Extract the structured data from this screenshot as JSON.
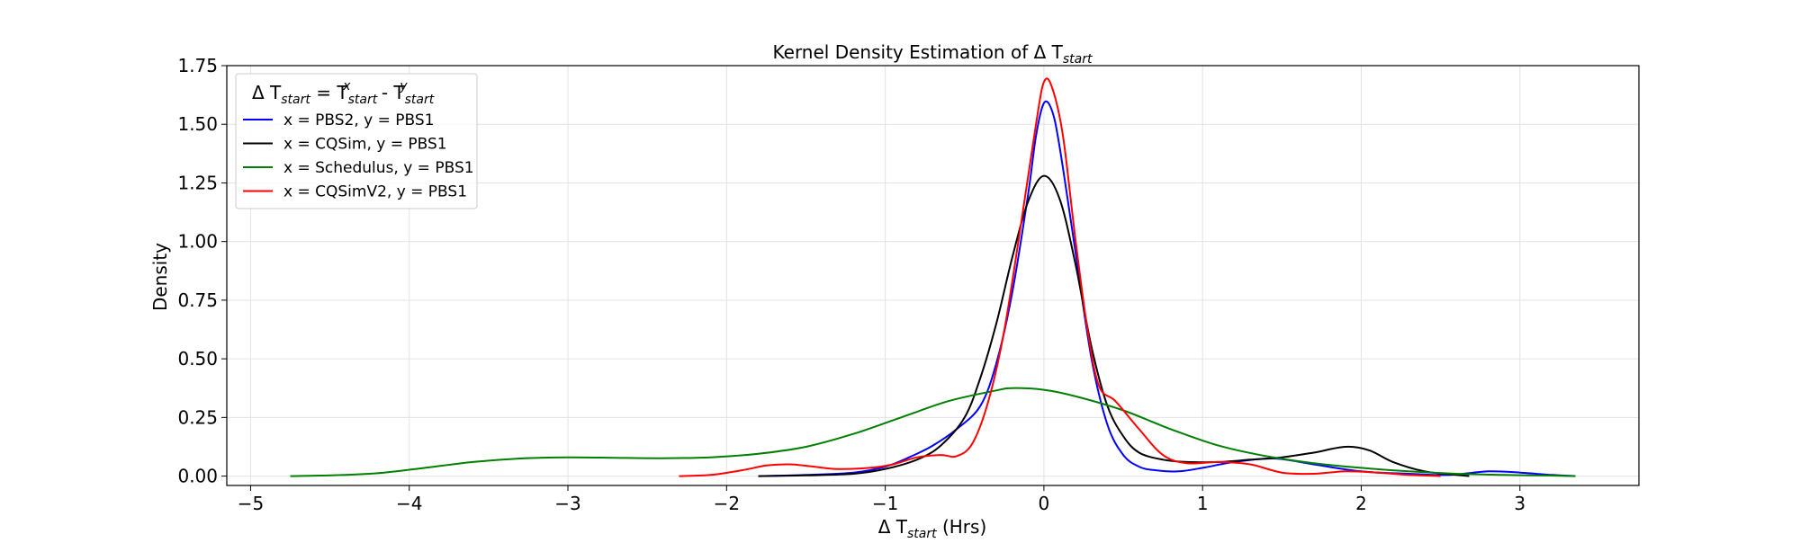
{
  "chart_data": {
    "type": "line",
    "title": {
      "main": "Kernel Density Estimation of Δ T",
      "sub": "start"
    },
    "xlabel": {
      "pre": "Δ T",
      "sub": "start",
      "post": " (Hrs)"
    },
    "ylabel": "Density",
    "xlim": [
      -5.15,
      3.75
    ],
    "ylim": [
      -0.04,
      1.75
    ],
    "xticks": [
      -5,
      -4,
      -3,
      -2,
      -1,
      0,
      1,
      2,
      3
    ],
    "xtick_labels": [
      "−5",
      "−4",
      "−3",
      "−2",
      "−1",
      "0",
      "1",
      "2",
      "3"
    ],
    "yticks": [
      0.0,
      0.25,
      0.5,
      0.75,
      1.0,
      1.25,
      1.5,
      1.75
    ],
    "ytick_labels": [
      "0.00",
      "0.25",
      "0.50",
      "0.75",
      "1.00",
      "1.25",
      "1.50",
      "1.75"
    ],
    "grid": true,
    "legend": {
      "placement": "top-left",
      "title": {
        "p1": "Δ T",
        "s1": "start",
        "p2": " = T",
        "s2": "start",
        "x": "x",
        "p3": " - T",
        "s3": "start",
        "y": "y"
      }
    },
    "series": [
      {
        "name": "x = PBS2, y = PBS1",
        "color": "#0000ff",
        "points": [
          [
            -1.8,
            0.0
          ],
          [
            -1.5,
            0.005
          ],
          [
            -1.2,
            0.015
          ],
          [
            -1.0,
            0.04
          ],
          [
            -0.85,
            0.08
          ],
          [
            -0.7,
            0.13
          ],
          [
            -0.55,
            0.2
          ],
          [
            -0.4,
            0.3
          ],
          [
            -0.3,
            0.48
          ],
          [
            -0.2,
            0.78
          ],
          [
            -0.1,
            1.2
          ],
          [
            -0.05,
            1.45
          ],
          [
            0.0,
            1.59
          ],
          [
            0.05,
            1.56
          ],
          [
            0.1,
            1.4
          ],
          [
            0.2,
            0.95
          ],
          [
            0.3,
            0.5
          ],
          [
            0.4,
            0.22
          ],
          [
            0.5,
            0.09
          ],
          [
            0.6,
            0.04
          ],
          [
            0.7,
            0.025
          ],
          [
            0.85,
            0.02
          ],
          [
            1.0,
            0.035
          ],
          [
            1.2,
            0.06
          ],
          [
            1.45,
            0.075
          ],
          [
            1.7,
            0.05
          ],
          [
            2.0,
            0.02
          ],
          [
            2.3,
            0.01
          ],
          [
            2.55,
            0.005
          ],
          [
            2.8,
            0.02
          ],
          [
            3.0,
            0.015
          ],
          [
            3.2,
            0.005
          ],
          [
            3.35,
            0.0
          ]
        ]
      },
      {
        "name": "x = CQSim, y = PBS1",
        "color": "#000000",
        "points": [
          [
            -1.8,
            0.0
          ],
          [
            -1.5,
            0.003
          ],
          [
            -1.2,
            0.01
          ],
          [
            -1.0,
            0.03
          ],
          [
            -0.8,
            0.07
          ],
          [
            -0.65,
            0.13
          ],
          [
            -0.5,
            0.25
          ],
          [
            -0.4,
            0.42
          ],
          [
            -0.3,
            0.65
          ],
          [
            -0.2,
            0.93
          ],
          [
            -0.1,
            1.17
          ],
          [
            0.0,
            1.28
          ],
          [
            0.1,
            1.18
          ],
          [
            0.2,
            0.9
          ],
          [
            0.3,
            0.55
          ],
          [
            0.4,
            0.3
          ],
          [
            0.5,
            0.17
          ],
          [
            0.6,
            0.1
          ],
          [
            0.75,
            0.07
          ],
          [
            0.9,
            0.06
          ],
          [
            1.1,
            0.06
          ],
          [
            1.3,
            0.07
          ],
          [
            1.5,
            0.08
          ],
          [
            1.7,
            0.1
          ],
          [
            1.9,
            0.125
          ],
          [
            2.05,
            0.11
          ],
          [
            2.2,
            0.06
          ],
          [
            2.4,
            0.02
          ],
          [
            2.6,
            0.005
          ],
          [
            2.68,
            0.0
          ]
        ]
      },
      {
        "name": "x = Schedulus, y = PBS1",
        "color": "#008000",
        "points": [
          [
            -4.75,
            0.0
          ],
          [
            -4.5,
            0.003
          ],
          [
            -4.2,
            0.012
          ],
          [
            -3.9,
            0.035
          ],
          [
            -3.6,
            0.06
          ],
          [
            -3.3,
            0.075
          ],
          [
            -3.0,
            0.08
          ],
          [
            -2.7,
            0.078
          ],
          [
            -2.4,
            0.076
          ],
          [
            -2.1,
            0.08
          ],
          [
            -1.8,
            0.095
          ],
          [
            -1.5,
            0.125
          ],
          [
            -1.2,
            0.18
          ],
          [
            -0.9,
            0.25
          ],
          [
            -0.6,
            0.32
          ],
          [
            -0.3,
            0.365
          ],
          [
            -0.2,
            0.375
          ],
          [
            0.0,
            0.368
          ],
          [
            0.2,
            0.34
          ],
          [
            0.5,
            0.28
          ],
          [
            0.8,
            0.2
          ],
          [
            1.1,
            0.13
          ],
          [
            1.4,
            0.085
          ],
          [
            1.7,
            0.055
          ],
          [
            2.0,
            0.035
          ],
          [
            2.3,
            0.02
          ],
          [
            2.6,
            0.01
          ],
          [
            2.9,
            0.005
          ],
          [
            3.2,
            0.002
          ],
          [
            3.35,
            0.0
          ]
        ]
      },
      {
        "name": "x = CQSimV2, y = PBS1",
        "color": "#ff0000",
        "points": [
          [
            -2.3,
            0.0
          ],
          [
            -2.1,
            0.005
          ],
          [
            -1.9,
            0.025
          ],
          [
            -1.75,
            0.045
          ],
          [
            -1.6,
            0.05
          ],
          [
            -1.45,
            0.04
          ],
          [
            -1.3,
            0.03
          ],
          [
            -1.1,
            0.035
          ],
          [
            -0.95,
            0.05
          ],
          [
            -0.8,
            0.08
          ],
          [
            -0.65,
            0.09
          ],
          [
            -0.55,
            0.085
          ],
          [
            -0.45,
            0.14
          ],
          [
            -0.35,
            0.32
          ],
          [
            -0.25,
            0.62
          ],
          [
            -0.15,
            1.05
          ],
          [
            -0.05,
            1.5
          ],
          [
            0.0,
            1.68
          ],
          [
            0.05,
            1.66
          ],
          [
            0.12,
            1.45
          ],
          [
            0.2,
            1.0
          ],
          [
            0.28,
            0.6
          ],
          [
            0.35,
            0.38
          ],
          [
            0.45,
            0.32
          ],
          [
            0.6,
            0.2
          ],
          [
            0.75,
            0.09
          ],
          [
            0.9,
            0.055
          ],
          [
            1.1,
            0.06
          ],
          [
            1.3,
            0.05
          ],
          [
            1.5,
            0.015
          ],
          [
            1.7,
            0.01
          ],
          [
            1.9,
            0.02
          ],
          [
            2.1,
            0.015
          ],
          [
            2.3,
            0.005
          ],
          [
            2.5,
            0.0
          ]
        ]
      }
    ]
  }
}
